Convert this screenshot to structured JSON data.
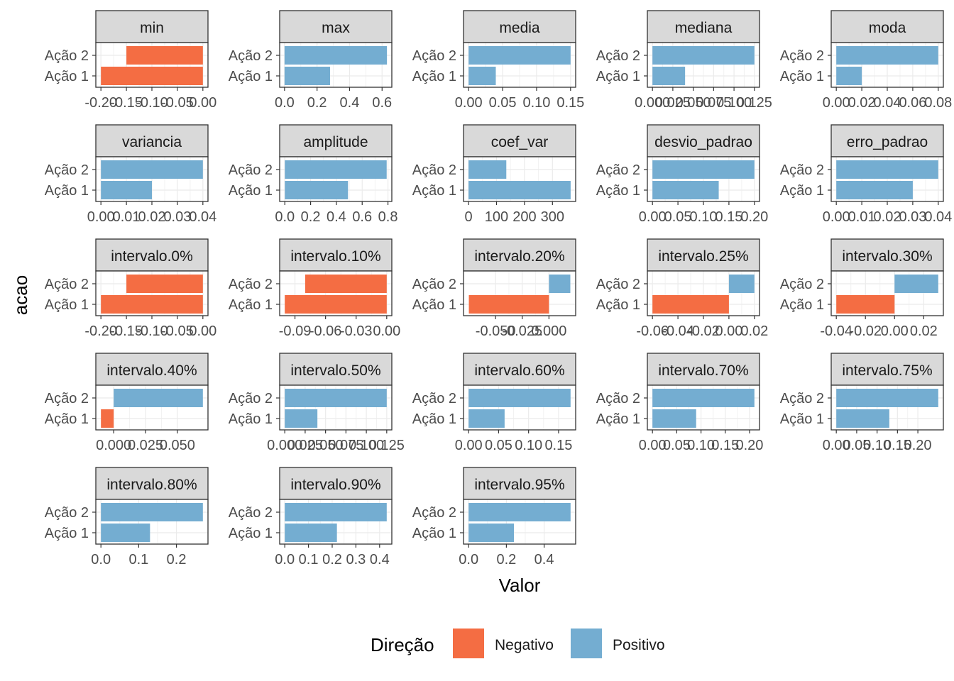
{
  "chart_data": {
    "type": "bar",
    "orientation": "horizontal",
    "facet_layout": "5 columns, free scales",
    "categories": [
      "Ação 1",
      "Ação 2"
    ],
    "xlabel": "Valor",
    "ylabel": "acao",
    "legend": {
      "title": "Direção",
      "position": "bottom",
      "entries": [
        {
          "label": "Negativo",
          "color": "#F46D43"
        },
        {
          "label": "Positivo",
          "color": "#74ADD1"
        }
      ]
    },
    "facets": [
      {
        "name": "min",
        "values": [
          -0.2,
          -0.15
        ],
        "xlim": [
          -0.21,
          0.01
        ],
        "ticks": [
          -0.2,
          -0.15,
          -0.1,
          -0.05,
          0.0
        ],
        "tick_labels": [
          "-0.20",
          "-0.15",
          "-0.10",
          "-0.05",
          "0.00"
        ]
      },
      {
        "name": "max",
        "values": [
          0.28,
          0.63
        ],
        "xlim": [
          -0.03,
          0.66
        ],
        "ticks": [
          0.0,
          0.2,
          0.4,
          0.6
        ],
        "tick_labels": [
          "0.0",
          "0.2",
          "0.4",
          "0.6"
        ]
      },
      {
        "name": "media",
        "values": [
          0.04,
          0.15
        ],
        "xlim": [
          -0.0075,
          0.1575
        ],
        "ticks": [
          0.0,
          0.05,
          0.1,
          0.15
        ],
        "tick_labels": [
          "0.00",
          "0.05",
          "0.10",
          "0.15"
        ]
      },
      {
        "name": "mediana",
        "values": [
          0.04,
          0.125
        ],
        "xlim": [
          -0.00625,
          0.13125
        ],
        "ticks": [
          0.0,
          0.025,
          0.05,
          0.075,
          0.1,
          0.125
        ],
        "tick_labels": [
          "0.000",
          "0.025",
          "0.050",
          "0.075",
          "0.100",
          "0.125"
        ]
      },
      {
        "name": "moda",
        "values": [
          0.02,
          0.08
        ],
        "xlim": [
          -0.004,
          0.084
        ],
        "ticks": [
          0.0,
          0.02,
          0.04,
          0.06,
          0.08
        ],
        "tick_labels": [
          "0.00",
          "0.02",
          "0.04",
          "0.06",
          "0.08"
        ]
      },
      {
        "name": "variancia",
        "values": [
          0.02,
          0.04
        ],
        "xlim": [
          -0.002,
          0.042
        ],
        "ticks": [
          0.0,
          0.01,
          0.02,
          0.03,
          0.04
        ],
        "tick_labels": [
          "0.00",
          "0.01",
          "0.02",
          "0.03",
          "0.04"
        ]
      },
      {
        "name": "amplitude",
        "values": [
          0.49,
          0.79
        ],
        "xlim": [
          -0.04,
          0.83
        ],
        "ticks": [
          0.0,
          0.2,
          0.4,
          0.6,
          0.8
        ],
        "tick_labels": [
          "0.0",
          "0.2",
          "0.4",
          "0.6",
          "0.8"
        ]
      },
      {
        "name": "coef_var",
        "values": [
          365,
          135
        ],
        "xlim": [
          -18,
          383
        ],
        "ticks": [
          0,
          100,
          200,
          300
        ],
        "tick_labels": [
          "0",
          "100",
          "200",
          "300"
        ]
      },
      {
        "name": "desvio_padrao",
        "values": [
          0.13,
          0.2
        ],
        "xlim": [
          -0.01,
          0.21
        ],
        "ticks": [
          0.0,
          0.05,
          0.1,
          0.15,
          0.2
        ],
        "tick_labels": [
          "0.00",
          "0.05",
          "0.10",
          "0.15",
          "0.20"
        ]
      },
      {
        "name": "erro_padrao",
        "values": [
          0.03,
          0.04
        ],
        "xlim": [
          -0.002,
          0.042
        ],
        "ticks": [
          0.0,
          0.01,
          0.02,
          0.03,
          0.04
        ],
        "tick_labels": [
          "0.00",
          "0.01",
          "0.02",
          "0.03",
          "0.04"
        ]
      },
      {
        "name": "intervalo.0%",
        "values": [
          -0.2,
          -0.15
        ],
        "xlim": [
          -0.21,
          0.01
        ],
        "ticks": [
          -0.2,
          -0.15,
          -0.1,
          -0.05,
          0.0
        ],
        "tick_labels": [
          "-0.20",
          "-0.15",
          "-0.10",
          "-0.05",
          "0.00"
        ]
      },
      {
        "name": "intervalo.10%",
        "values": [
          -0.1,
          -0.08
        ],
        "xlim": [
          -0.105,
          0.005
        ],
        "ticks": [
          -0.09,
          -0.06,
          -0.03,
          0.0
        ],
        "tick_labels": [
          "-0.09",
          "-0.06",
          "-0.03",
          "0.00"
        ]
      },
      {
        "name": "intervalo.20%",
        "values": [
          -0.075,
          0.02
        ],
        "xlim": [
          -0.08,
          0.025
        ],
        "ticks": [
          -0.05,
          -0.025,
          0.0
        ],
        "tick_labels": [
          "-0.050",
          "-0.025",
          "0.000"
        ]
      },
      {
        "name": "intervalo.25%",
        "values": [
          -0.06,
          0.02
        ],
        "xlim": [
          -0.064,
          0.024
        ],
        "ticks": [
          -0.06,
          -0.04,
          -0.02,
          0.0,
          0.02
        ],
        "tick_labels": [
          "-0.06",
          "-0.04",
          "-0.02",
          "0.00",
          "0.02"
        ]
      },
      {
        "name": "intervalo.30%",
        "values": [
          -0.04,
          0.03
        ],
        "xlim": [
          -0.0435,
          0.0335
        ],
        "ticks": [
          -0.04,
          -0.02,
          0.0,
          0.02
        ],
        "tick_labels": [
          "-0.04",
          "-0.02",
          "0.00",
          "0.02"
        ]
      },
      {
        "name": "intervalo.40%",
        "values": [
          -0.01,
          0.07
        ],
        "xlim": [
          -0.014,
          0.074
        ],
        "ticks": [
          0.0,
          0.025,
          0.05
        ],
        "tick_labels": [
          "0.000",
          "0.025",
          "0.050"
        ]
      },
      {
        "name": "intervalo.50%",
        "values": [
          0.04,
          0.125
        ],
        "xlim": [
          -0.00625,
          0.13125
        ],
        "ticks": [
          0.0,
          0.025,
          0.05,
          0.075,
          0.1,
          0.125
        ],
        "tick_labels": [
          "0.000",
          "0.025",
          "0.050",
          "0.075",
          "0.100",
          "0.125"
        ]
      },
      {
        "name": "intervalo.60%",
        "values": [
          0.06,
          0.17
        ],
        "xlim": [
          -0.0085,
          0.1785
        ],
        "ticks": [
          0.0,
          0.05,
          0.1,
          0.15
        ],
        "tick_labels": [
          "0.00",
          "0.05",
          "0.10",
          "0.15"
        ]
      },
      {
        "name": "intervalo.70%",
        "values": [
          0.09,
          0.21
        ],
        "xlim": [
          -0.0105,
          0.2205
        ],
        "ticks": [
          0.0,
          0.05,
          0.1,
          0.15,
          0.2
        ],
        "tick_labels": [
          "0.00",
          "0.05",
          "0.10",
          "0.15",
          "0.20"
        ]
      },
      {
        "name": "intervalo.75%",
        "values": [
          0.13,
          0.25
        ],
        "xlim": [
          -0.0125,
          0.2625
        ],
        "ticks": [
          0.0,
          0.05,
          0.1,
          0.15,
          0.2
        ],
        "tick_labels": [
          "0.00",
          "0.05",
          "0.10",
          "0.15",
          "0.20"
        ]
      },
      {
        "name": "intervalo.80%",
        "values": [
          0.13,
          0.27
        ],
        "xlim": [
          -0.0135,
          0.2835
        ],
        "ticks": [
          0.0,
          0.1,
          0.2
        ],
        "tick_labels": [
          "0.0",
          "0.1",
          "0.2"
        ]
      },
      {
        "name": "intervalo.90%",
        "values": [
          0.22,
          0.43
        ],
        "xlim": [
          -0.0215,
          0.4515
        ],
        "ticks": [
          0.0,
          0.1,
          0.2,
          0.3,
          0.4
        ],
        "tick_labels": [
          "0.0",
          "0.1",
          "0.2",
          "0.3",
          "0.4"
        ]
      },
      {
        "name": "intervalo.95%",
        "values": [
          0.24,
          0.54
        ],
        "xlim": [
          -0.027,
          0.567
        ],
        "ticks": [
          0.0,
          0.2,
          0.4
        ],
        "tick_labels": [
          "0.0",
          "0.2",
          "0.4"
        ]
      }
    ]
  }
}
